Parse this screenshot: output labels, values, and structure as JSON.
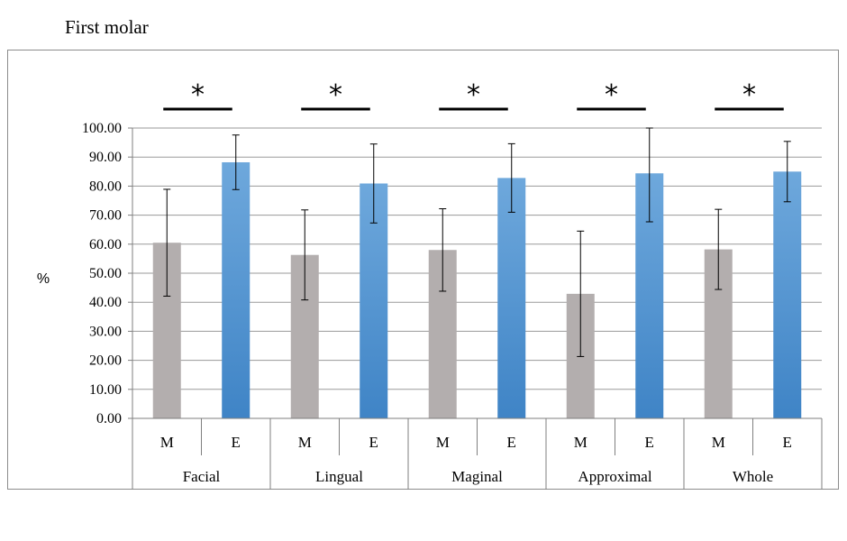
{
  "title": "First molar",
  "chart_data": {
    "type": "bar",
    "ylabel": "%",
    "ylim": [
      0,
      100
    ],
    "yticks": [
      0,
      10,
      20,
      30,
      40,
      50,
      60,
      70,
      80,
      90,
      100
    ],
    "tick_decimals": 2,
    "grid": true,
    "groups": [
      "Facial",
      "Lingual",
      "Maginal",
      "Approximal",
      "Whole"
    ],
    "series": [
      {
        "name": "M",
        "color": "#b3aeae",
        "values": [
          60.5,
          56.3,
          58.0,
          42.9,
          58.2
        ],
        "errors": [
          18.4,
          15.5,
          14.2,
          21.6,
          13.8
        ]
      },
      {
        "name": "E",
        "color": "#5b9bd5",
        "values": [
          88.2,
          80.9,
          82.8,
          84.4,
          85.0
        ],
        "errors": [
          9.4,
          13.6,
          11.8,
          16.7,
          10.4
        ]
      }
    ],
    "significance": {
      "symbol": "*",
      "groups": [
        "Facial",
        "Lingual",
        "Maginal",
        "Approximal",
        "Whole"
      ]
    }
  }
}
